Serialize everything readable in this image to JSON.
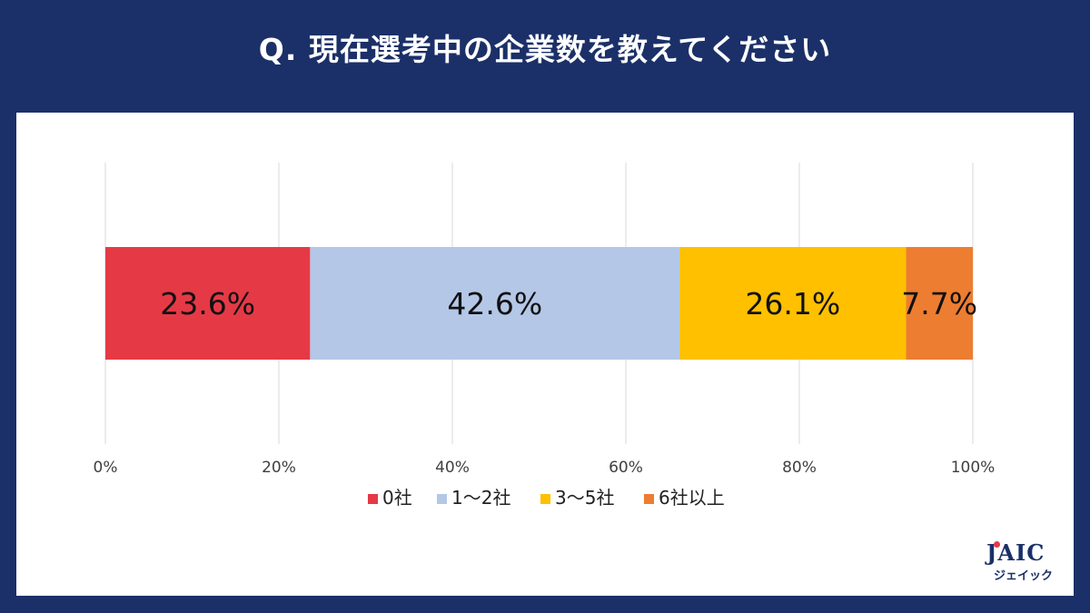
{
  "title": "Q.  現在選考中の企業数を教えてください",
  "logo": {
    "main": "JAIC",
    "sub": "ジェイック"
  },
  "chart_data": {
    "type": "bar",
    "orientation": "horizontal-stacked-100",
    "xlim": [
      0,
      100
    ],
    "xticks": [
      0,
      20,
      40,
      60,
      80,
      100
    ],
    "xtick_labels": [
      "0%",
      "20%",
      "40%",
      "60%",
      "80%",
      "100%"
    ],
    "grid": true,
    "legend_position": "bottom",
    "series": [
      {
        "name": "0社",
        "value": 23.6,
        "label": "23.6%",
        "color": "#e63946"
      },
      {
        "name": "1〜2社",
        "value": 42.6,
        "label": "42.6%",
        "color": "#b4c7e7"
      },
      {
        "name": "3〜5社",
        "value": 26.1,
        "label": "26.1%",
        "color": "#ffc000"
      },
      {
        "name": "6社以上",
        "value": 7.7,
        "label": "7.7%",
        "color": "#ed7d31"
      }
    ]
  }
}
